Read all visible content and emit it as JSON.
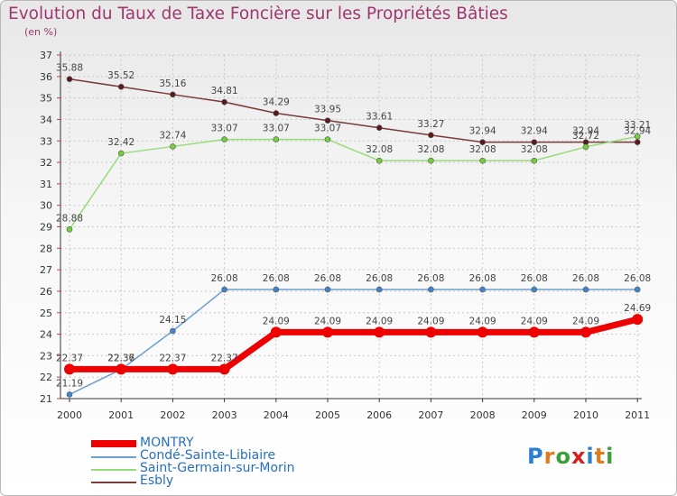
{
  "header": {
    "title": "Evolution du Taux de Taxe Foncière sur les Propriétés Bâties",
    "subtitle": "(en %)"
  },
  "logo": {
    "text": "Proxiti",
    "colors": [
      "#2a7fd0",
      "#e07a1a",
      "#3aa03a",
      "#d62020",
      "#2a7fd0",
      "#e07a1a",
      "#3aa03a"
    ]
  },
  "chart_data": {
    "type": "line",
    "x": [
      "2000",
      "2001",
      "2002",
      "2003",
      "2004",
      "2005",
      "2006",
      "2007",
      "2008",
      "2009",
      "2010",
      "2011"
    ],
    "ylim": [
      21,
      37
    ],
    "yticks": [
      21,
      22,
      23,
      24,
      25,
      26,
      27,
      28,
      29,
      30,
      31,
      32,
      33,
      34,
      35,
      36,
      37
    ],
    "legend_position": "bottom-left",
    "series": [
      {
        "name": "MONTRY",
        "color": "#ee0000",
        "marker_color": "#ee0000",
        "values": [
          22.37,
          22.37,
          22.37,
          22.37,
          24.09,
          24.09,
          24.09,
          24.09,
          24.09,
          24.09,
          24.09,
          24.69
        ],
        "labels": [
          "22.37",
          "22.37",
          "22.37",
          "22.37",
          "24.09",
          "24.09",
          "24.09",
          "24.09",
          "24.09",
          "24.09",
          "24.09",
          "24.69"
        ]
      },
      {
        "name": "Condé-Sainte-Libiaire",
        "color": "#6a9fd4",
        "marker_color": "#3f85c9",
        "values": [
          21.19,
          22.36,
          24.15,
          26.08,
          26.08,
          26.08,
          26.08,
          26.08,
          26.08,
          26.08,
          26.08,
          26.08
        ],
        "labels": [
          "21.19",
          "22.36",
          "24.15",
          "26.08",
          "26.08",
          "26.08",
          "26.08",
          "26.08",
          "26.08",
          "26.08",
          "26.08",
          "26.08"
        ]
      },
      {
        "name": "Saint-Germain-sur-Morin",
        "color": "#96dc7a",
        "marker_color": "#6fd03a",
        "values": [
          28.88,
          32.42,
          32.74,
          33.07,
          33.07,
          33.07,
          32.08,
          32.08,
          32.08,
          32.08,
          32.72,
          33.21
        ],
        "labels": [
          "28.88",
          "32.42",
          "32.74",
          "33.07",
          "33.07",
          "33.07",
          "32.08",
          "32.08",
          "32.08",
          "32.08",
          "32.72",
          "33.21"
        ]
      },
      {
        "name": "Esbly",
        "color": "#7a3a3a",
        "marker_color": "#5a1a1a",
        "values": [
          35.88,
          35.52,
          35.16,
          34.81,
          34.29,
          33.95,
          33.61,
          33.27,
          32.94,
          32.94,
          32.94,
          32.94
        ],
        "labels": [
          "35.88",
          "35.52",
          "35.16",
          "34.81",
          "34.29",
          "33.95",
          "33.61",
          "33.27",
          "32.94",
          "32.94",
          "32.94",
          "32.94"
        ]
      }
    ]
  }
}
